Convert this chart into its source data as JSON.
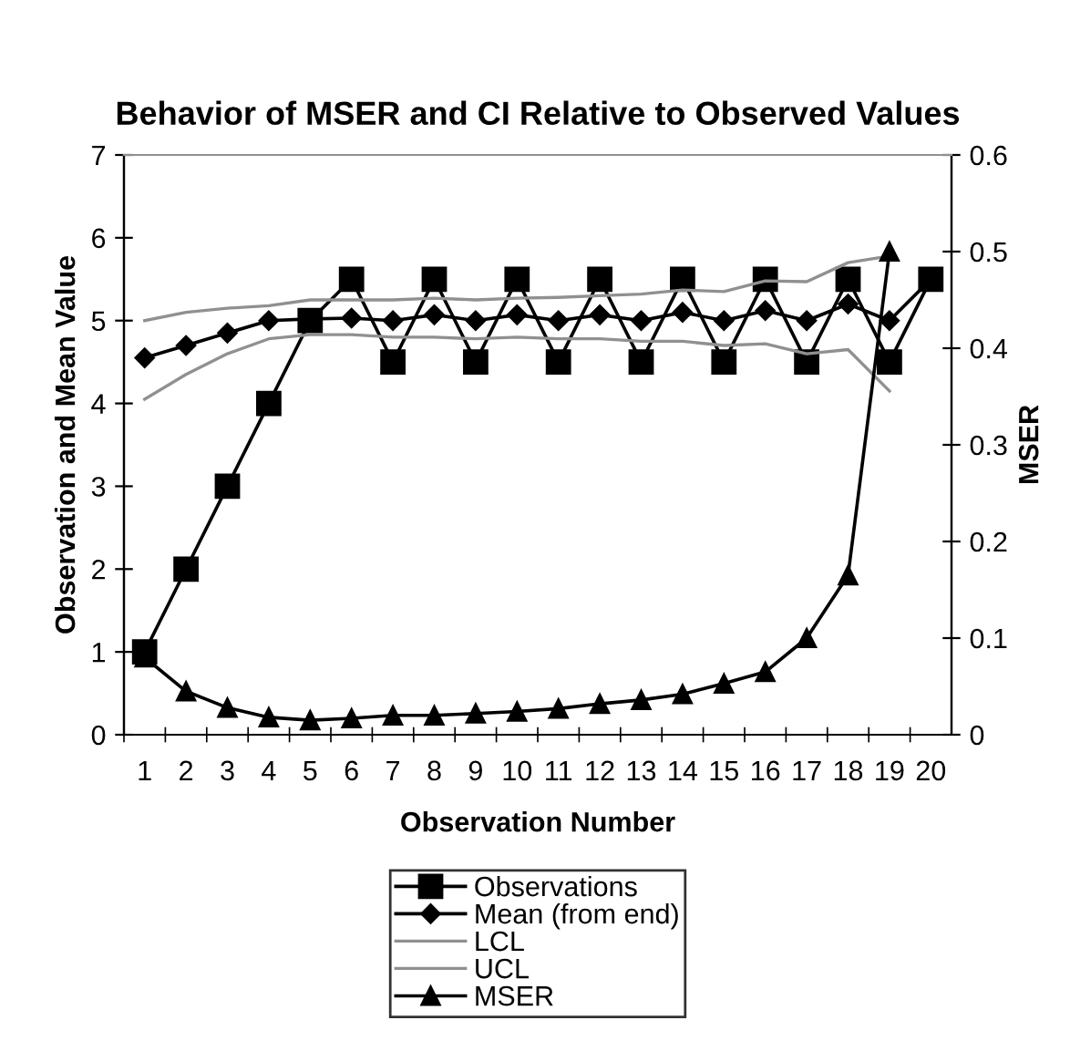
{
  "chart_data": {
    "type": "line",
    "title": "Behavior of MSER and CI Relative to Observed Values",
    "xlabel": "Observation Number",
    "ylabel": "Observation and Mean Value",
    "y2label": "MSER",
    "categories": [
      "1",
      "2",
      "3",
      "4",
      "5",
      "6",
      "7",
      "8",
      "9",
      "10",
      "11",
      "12",
      "13",
      "14",
      "15",
      "16",
      "17",
      "18",
      "19",
      "20"
    ],
    "series": [
      {
        "name": "Observations",
        "color": "#000000",
        "marker": "square",
        "values": [
          1,
          2,
          3,
          4,
          5,
          5.5,
          4.5,
          5.5,
          4.5,
          5.5,
          4.5,
          5.5,
          4.5,
          5.5,
          4.5,
          5.5,
          4.5,
          5.5,
          4.5,
          5.5
        ]
      },
      {
        "name": "Mean (from end)",
        "color": "#000000",
        "marker": "diamond",
        "values": [
          4.55,
          4.7,
          4.85,
          5.0,
          5.02,
          5.03,
          5.0,
          5.07,
          5.0,
          5.07,
          5.0,
          5.07,
          5.0,
          5.1,
          5.0,
          5.12,
          5.0,
          5.2,
          5.0,
          5.5
        ]
      },
      {
        "name": "LCL",
        "color": "#909090",
        "marker": "none",
        "values": [
          4.05,
          4.35,
          4.6,
          4.78,
          4.83,
          4.83,
          4.8,
          4.8,
          4.78,
          4.8,
          4.78,
          4.78,
          4.75,
          4.75,
          4.7,
          4.72,
          4.6,
          4.65,
          4.15,
          null
        ]
      },
      {
        "name": "UCL",
        "color": "#909090",
        "marker": "none",
        "values": [
          5.0,
          5.1,
          5.15,
          5.18,
          5.25,
          5.25,
          5.25,
          5.27,
          5.25,
          5.27,
          5.28,
          5.3,
          5.32,
          5.37,
          5.35,
          5.48,
          5.47,
          5.7,
          5.78,
          null
        ]
      },
      {
        "name": "MSER",
        "color": "#000000",
        "marker": "triangle",
        "axis": "y2",
        "values": [
          0.08,
          0.045,
          0.028,
          0.018,
          0.015,
          0.017,
          0.02,
          0.02,
          0.022,
          0.024,
          0.027,
          0.032,
          0.036,
          0.042,
          0.053,
          0.065,
          0.1,
          0.165,
          0.5,
          null
        ]
      }
    ],
    "ylim": [
      0,
      7
    ],
    "yticks": [
      0,
      1,
      2,
      3,
      4,
      5,
      6,
      7
    ],
    "y2lim": [
      0,
      0.6
    ],
    "y2ticks": [
      0,
      0.1,
      0.2,
      0.3,
      0.4,
      0.5,
      0.6
    ],
    "grid": false,
    "legend": "bottom",
    "line_style": "solid"
  }
}
